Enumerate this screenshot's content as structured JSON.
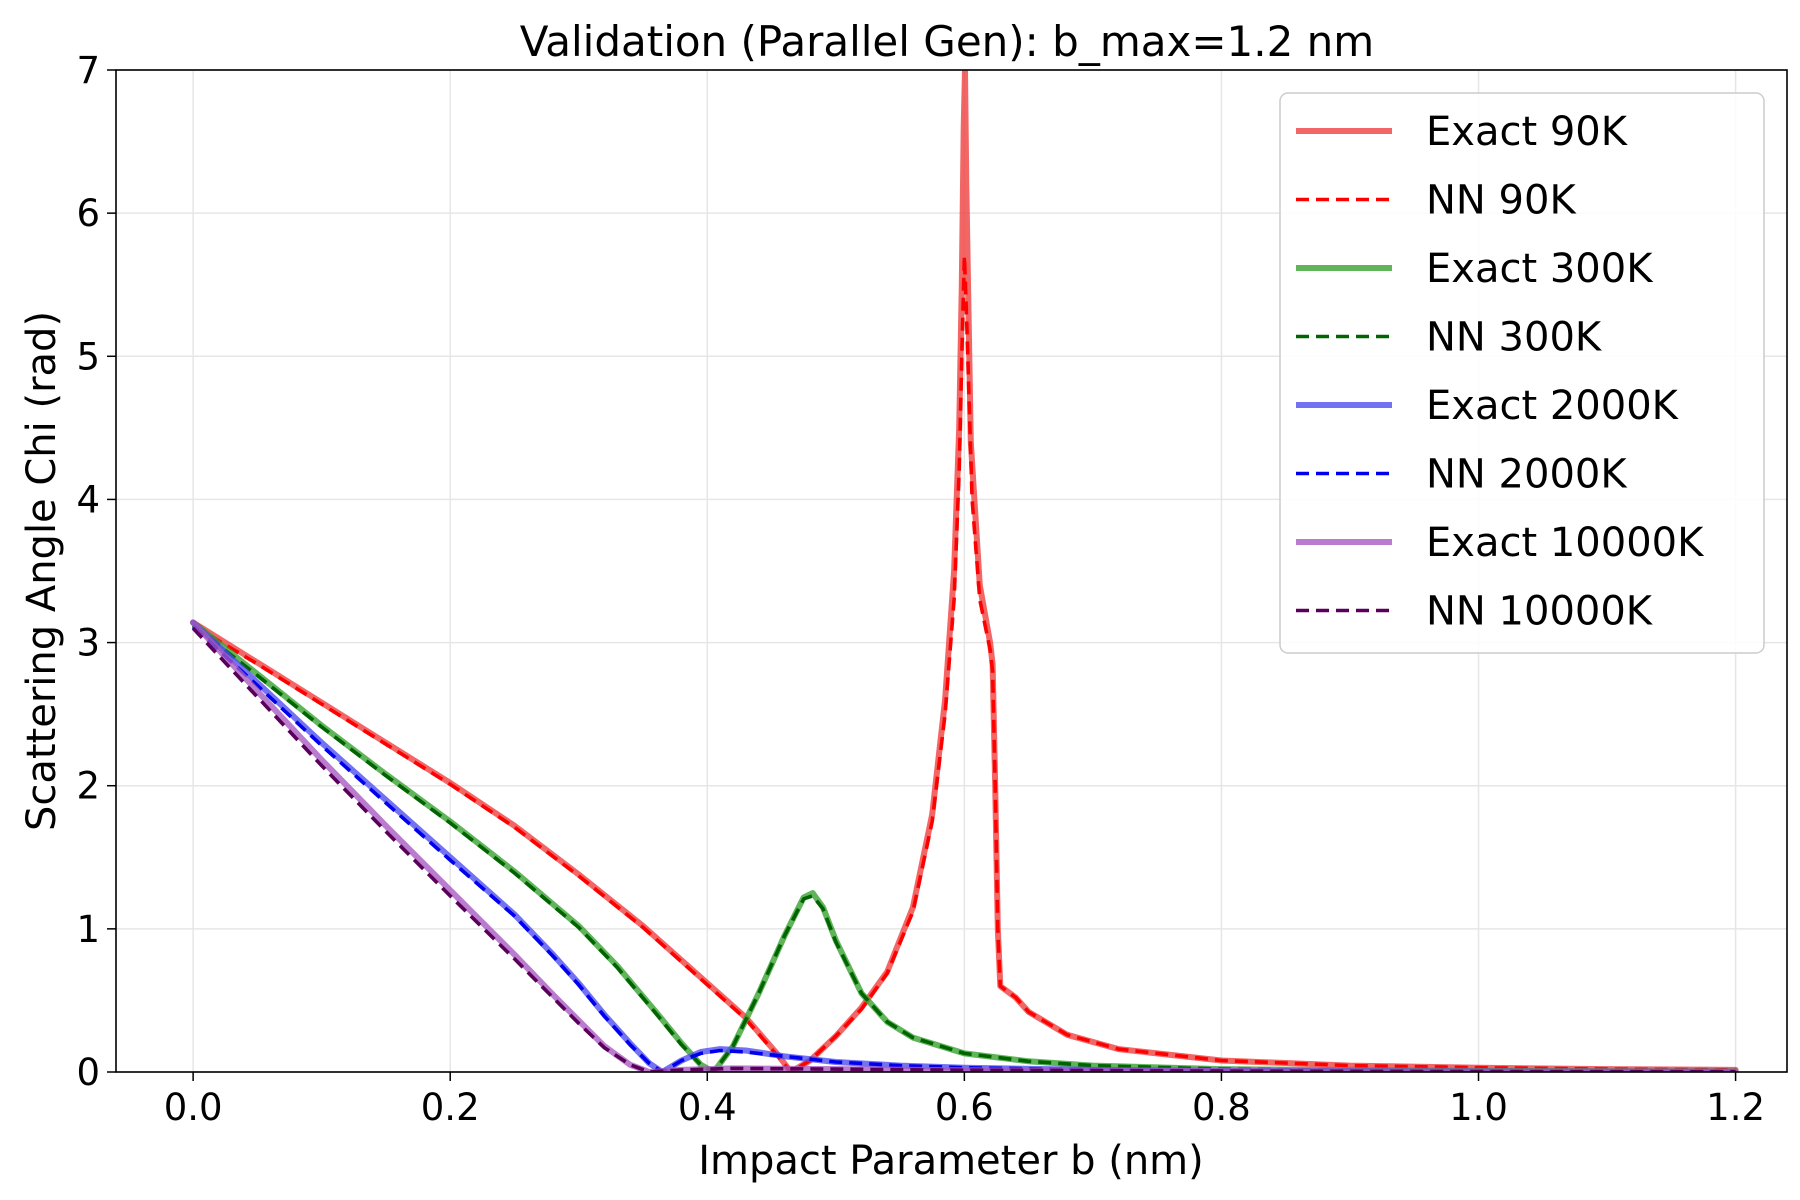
{
  "chart_data": {
    "type": "line",
    "title": "Validation (Parallel Gen): b_max=1.2 nm",
    "xlabel": "Impact Parameter b (nm)",
    "ylabel": "Scattering Angle Chi (rad)",
    "xlim": [
      -0.06,
      1.24
    ],
    "ylim": [
      0,
      7
    ],
    "xticks": [
      0.0,
      0.2,
      0.4,
      0.6,
      0.8,
      1.0,
      1.2
    ],
    "xtick_labels": [
      "0.0",
      "0.2",
      "0.4",
      "0.6",
      "0.8",
      "1.0",
      "1.2"
    ],
    "yticks": [
      0,
      1,
      2,
      3,
      4,
      5,
      6,
      7
    ],
    "ytick_labels": [
      "0",
      "1",
      "2",
      "3",
      "4",
      "5",
      "6",
      "7"
    ],
    "grid": true,
    "legend_position": "top-right",
    "series": [
      {
        "name": "Exact 90K",
        "color": "#ee3b3b",
        "style": "solid",
        "points": [
          [
            0,
            3.14
          ],
          [
            0.05,
            2.86
          ],
          [
            0.1,
            2.58
          ],
          [
            0.15,
            2.3
          ],
          [
            0.2,
            2.02
          ],
          [
            0.25,
            1.72
          ],
          [
            0.3,
            1.38
          ],
          [
            0.35,
            1.02
          ],
          [
            0.4,
            0.62
          ],
          [
            0.43,
            0.38
          ],
          [
            0.455,
            0.12
          ],
          [
            0.465,
            0.0
          ],
          [
            0.48,
            0.08
          ],
          [
            0.5,
            0.25
          ],
          [
            0.52,
            0.45
          ],
          [
            0.54,
            0.7
          ],
          [
            0.56,
            1.15
          ],
          [
            0.575,
            1.8
          ],
          [
            0.585,
            2.6
          ],
          [
            0.592,
            3.5
          ],
          [
            0.596,
            4.5
          ],
          [
            0.598,
            5.5
          ],
          [
            0.5995,
            6.6
          ],
          [
            0.6005,
            7.0
          ],
          [
            0.6015,
            6.2
          ],
          [
            0.605,
            4.4
          ],
          [
            0.612,
            3.4
          ],
          [
            0.62,
            3.0
          ],
          [
            0.622,
            2.85
          ],
          [
            0.624,
            2.0
          ],
          [
            0.626,
            1.0
          ],
          [
            0.628,
            0.6
          ],
          [
            0.64,
            0.52
          ],
          [
            0.65,
            0.42
          ],
          [
            0.68,
            0.26
          ],
          [
            0.72,
            0.16
          ],
          [
            0.8,
            0.08
          ],
          [
            0.9,
            0.045
          ],
          [
            1.0,
            0.03
          ],
          [
            1.1,
            0.02
          ],
          [
            1.2,
            0.015
          ]
        ]
      },
      {
        "name": "NN 90K",
        "color": "#ff0000",
        "style": "dashed",
        "points": [
          [
            0,
            3.12
          ],
          [
            0.05,
            2.85
          ],
          [
            0.1,
            2.57
          ],
          [
            0.15,
            2.29
          ],
          [
            0.2,
            2.01
          ],
          [
            0.25,
            1.71
          ],
          [
            0.3,
            1.37
          ],
          [
            0.35,
            1.01
          ],
          [
            0.4,
            0.61
          ],
          [
            0.43,
            0.37
          ],
          [
            0.455,
            0.11
          ],
          [
            0.465,
            0.0
          ],
          [
            0.48,
            0.08
          ],
          [
            0.5,
            0.25
          ],
          [
            0.52,
            0.44
          ],
          [
            0.54,
            0.69
          ],
          [
            0.56,
            1.12
          ],
          [
            0.575,
            1.75
          ],
          [
            0.585,
            2.5
          ],
          [
            0.592,
            3.3
          ],
          [
            0.596,
            4.2
          ],
          [
            0.598,
            5.0
          ],
          [
            0.6,
            5.7
          ],
          [
            0.602,
            5.2
          ],
          [
            0.606,
            4.0
          ],
          [
            0.612,
            3.3
          ],
          [
            0.62,
            2.95
          ],
          [
            0.622,
            2.8
          ],
          [
            0.624,
            2.0
          ],
          [
            0.626,
            1.0
          ],
          [
            0.628,
            0.6
          ],
          [
            0.64,
            0.52
          ],
          [
            0.65,
            0.42
          ],
          [
            0.68,
            0.26
          ],
          [
            0.72,
            0.16
          ],
          [
            0.8,
            0.08
          ],
          [
            0.9,
            0.045
          ],
          [
            1.0,
            0.03
          ],
          [
            1.1,
            0.02
          ],
          [
            1.2,
            0.015
          ]
        ]
      },
      {
        "name": "Exact 300K",
        "color": "#33a02c",
        "style": "solid",
        "points": [
          [
            0,
            3.14
          ],
          [
            0.05,
            2.78
          ],
          [
            0.1,
            2.42
          ],
          [
            0.15,
            2.08
          ],
          [
            0.2,
            1.75
          ],
          [
            0.25,
            1.4
          ],
          [
            0.3,
            1.02
          ],
          [
            0.33,
            0.74
          ],
          [
            0.36,
            0.42
          ],
          [
            0.38,
            0.2
          ],
          [
            0.395,
            0.05
          ],
          [
            0.405,
            0.0
          ],
          [
            0.42,
            0.18
          ],
          [
            0.44,
            0.55
          ],
          [
            0.46,
            0.95
          ],
          [
            0.475,
            1.22
          ],
          [
            0.482,
            1.25
          ],
          [
            0.49,
            1.15
          ],
          [
            0.5,
            0.92
          ],
          [
            0.52,
            0.55
          ],
          [
            0.54,
            0.35
          ],
          [
            0.56,
            0.24
          ],
          [
            0.6,
            0.13
          ],
          [
            0.65,
            0.075
          ],
          [
            0.7,
            0.045
          ],
          [
            0.8,
            0.02
          ],
          [
            0.9,
            0.012
          ],
          [
            1.0,
            0.008
          ],
          [
            1.2,
            0.004
          ]
        ]
      },
      {
        "name": "NN 300K",
        "color": "#006400",
        "style": "dashed",
        "points": [
          [
            0,
            3.12
          ],
          [
            0.05,
            2.77
          ],
          [
            0.1,
            2.41
          ],
          [
            0.15,
            2.07
          ],
          [
            0.2,
            1.74
          ],
          [
            0.25,
            1.39
          ],
          [
            0.3,
            1.01
          ],
          [
            0.33,
            0.73
          ],
          [
            0.36,
            0.41
          ],
          [
            0.38,
            0.19
          ],
          [
            0.395,
            0.05
          ],
          [
            0.405,
            0.0
          ],
          [
            0.42,
            0.18
          ],
          [
            0.44,
            0.55
          ],
          [
            0.46,
            0.95
          ],
          [
            0.475,
            1.21
          ],
          [
            0.482,
            1.23
          ],
          [
            0.49,
            1.14
          ],
          [
            0.5,
            0.91
          ],
          [
            0.52,
            0.55
          ],
          [
            0.54,
            0.35
          ],
          [
            0.56,
            0.24
          ],
          [
            0.6,
            0.13
          ],
          [
            0.65,
            0.075
          ],
          [
            0.7,
            0.045
          ],
          [
            0.8,
            0.02
          ],
          [
            0.9,
            0.012
          ],
          [
            1.0,
            0.008
          ],
          [
            1.2,
            0.004
          ]
        ]
      },
      {
        "name": "Exact 2000K",
        "color": "#4a4aee",
        "style": "solid",
        "points": [
          [
            0,
            3.14
          ],
          [
            0.05,
            2.72
          ],
          [
            0.1,
            2.3
          ],
          [
            0.15,
            1.9
          ],
          [
            0.2,
            1.5
          ],
          [
            0.25,
            1.1
          ],
          [
            0.28,
            0.82
          ],
          [
            0.3,
            0.62
          ],
          [
            0.32,
            0.4
          ],
          [
            0.34,
            0.2
          ],
          [
            0.355,
            0.06
          ],
          [
            0.365,
            0.0
          ],
          [
            0.38,
            0.08
          ],
          [
            0.395,
            0.14
          ],
          [
            0.41,
            0.16
          ],
          [
            0.43,
            0.15
          ],
          [
            0.46,
            0.11
          ],
          [
            0.5,
            0.07
          ],
          [
            0.55,
            0.045
          ],
          [
            0.6,
            0.03
          ],
          [
            0.7,
            0.015
          ],
          [
            0.8,
            0.008
          ],
          [
            1.0,
            0.004
          ],
          [
            1.2,
            0.002
          ]
        ]
      },
      {
        "name": "NN 2000K",
        "color": "#0000ee",
        "style": "dashed",
        "points": [
          [
            0,
            3.11
          ],
          [
            0.05,
            2.7
          ],
          [
            0.1,
            2.28
          ],
          [
            0.15,
            1.88
          ],
          [
            0.2,
            1.48
          ],
          [
            0.25,
            1.09
          ],
          [
            0.28,
            0.81
          ],
          [
            0.3,
            0.61
          ],
          [
            0.32,
            0.39
          ],
          [
            0.34,
            0.19
          ],
          [
            0.355,
            0.06
          ],
          [
            0.365,
            0.0
          ],
          [
            0.38,
            0.08
          ],
          [
            0.395,
            0.13
          ],
          [
            0.41,
            0.15
          ],
          [
            0.43,
            0.14
          ],
          [
            0.46,
            0.11
          ],
          [
            0.5,
            0.07
          ],
          [
            0.55,
            0.045
          ],
          [
            0.6,
            0.03
          ],
          [
            0.7,
            0.015
          ],
          [
            0.8,
            0.008
          ],
          [
            1.0,
            0.004
          ],
          [
            1.2,
            0.002
          ]
        ]
      },
      {
        "name": "Exact 10000K",
        "color": "#a757c0",
        "style": "solid",
        "points": [
          [
            0,
            3.14
          ],
          [
            0.05,
            2.66
          ],
          [
            0.1,
            2.18
          ],
          [
            0.15,
            1.72
          ],
          [
            0.2,
            1.27
          ],
          [
            0.25,
            0.82
          ],
          [
            0.28,
            0.54
          ],
          [
            0.3,
            0.36
          ],
          [
            0.32,
            0.18
          ],
          [
            0.34,
            0.05
          ],
          [
            0.355,
            0.0
          ],
          [
            0.38,
            0.015
          ],
          [
            0.42,
            0.025
          ],
          [
            0.5,
            0.02
          ],
          [
            0.6,
            0.012
          ],
          [
            0.8,
            0.006
          ],
          [
            1.0,
            0.003
          ],
          [
            1.2,
            0.002
          ]
        ]
      },
      {
        "name": "NN 10000K",
        "color": "#5a005a",
        "style": "dashed",
        "points": [
          [
            0,
            3.1
          ],
          [
            0.05,
            2.62
          ],
          [
            0.1,
            2.14
          ],
          [
            0.15,
            1.68
          ],
          [
            0.2,
            1.23
          ],
          [
            0.25,
            0.79
          ],
          [
            0.28,
            0.52
          ],
          [
            0.3,
            0.34
          ],
          [
            0.32,
            0.17
          ],
          [
            0.34,
            0.05
          ],
          [
            0.355,
            0.0
          ],
          [
            0.38,
            0.015
          ],
          [
            0.42,
            0.025
          ],
          [
            0.5,
            0.02
          ],
          [
            0.6,
            0.012
          ],
          [
            0.8,
            0.006
          ],
          [
            1.0,
            0.003
          ],
          [
            1.2,
            0.002
          ]
        ]
      }
    ]
  }
}
